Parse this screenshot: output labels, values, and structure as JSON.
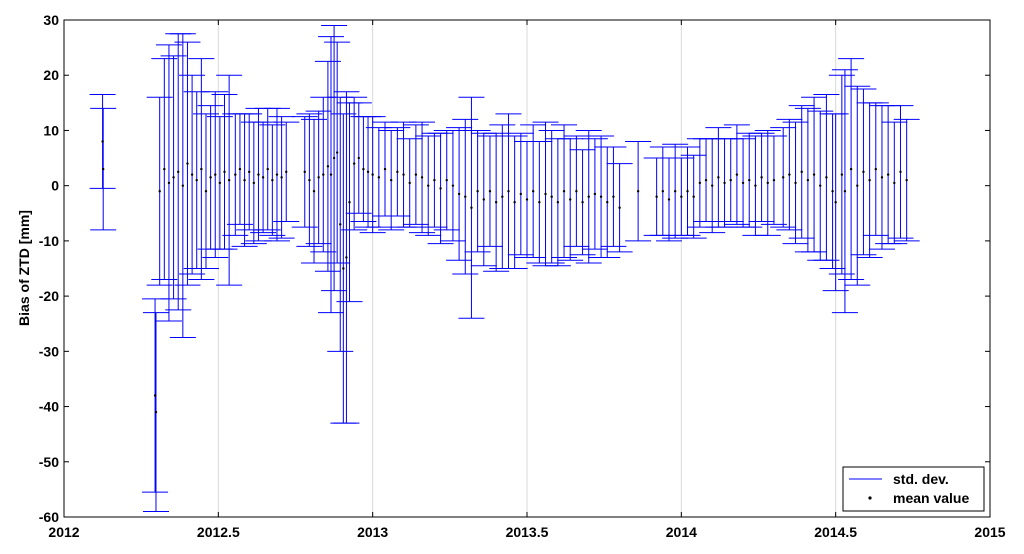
{
  "chart_data": {
    "type": "errorbar",
    "title": "",
    "xlabel": "",
    "ylabel": "Bias of ZTD [mm]",
    "xlim": [
      2012,
      2015
    ],
    "ylim": [
      -60,
      30
    ],
    "x_ticks": [
      2012,
      2012.5,
      2013,
      2013.5,
      2014,
      2014.5,
      2015
    ],
    "x_tick_labels": [
      "2012",
      "2012.5",
      "2013",
      "2013.5",
      "2014",
      "2014.5",
      "2015"
    ],
    "y_ticks": [
      -60,
      -50,
      -40,
      -30,
      -20,
      -10,
      0,
      10,
      20,
      30
    ],
    "y_tick_labels": [
      "-60",
      "-50",
      "-40",
      "-30",
      "-20",
      "-10",
      "0",
      "10",
      "20",
      "30"
    ],
    "grid": "x-only",
    "legend": {
      "position": "bottom-right",
      "entries": [
        {
          "name": "std. dev.",
          "marker": "line",
          "color": "#0000ff"
        },
        {
          "name": "mean value",
          "marker": "dot",
          "color": "#000000"
        }
      ]
    },
    "series": [
      {
        "name": "mean value",
        "error_name": "std. dev.",
        "points": [
          {
            "x": 2012.125,
            "y": 8.0,
            "err": 8.5
          },
          {
            "x": 2012.127,
            "y": 3.0,
            "err": 11.0
          },
          {
            "x": 2012.295,
            "y": -38.0,
            "err": 17.5
          },
          {
            "x": 2012.298,
            "y": -41.0,
            "err": 18.0
          },
          {
            "x": 2012.31,
            "y": -1.0,
            "err": 17.0
          },
          {
            "x": 2012.325,
            "y": 3.0,
            "err": 20.0
          },
          {
            "x": 2012.34,
            "y": 0.5,
            "err": 25.0
          },
          {
            "x": 2012.355,
            "y": 1.5,
            "err": 22.0
          },
          {
            "x": 2012.37,
            "y": 2.5,
            "err": 25.0
          },
          {
            "x": 2012.385,
            "y": 0.0,
            "err": 27.5
          },
          {
            "x": 2012.4,
            "y": 4.0,
            "err": 22.0
          },
          {
            "x": 2012.415,
            "y": 2.0,
            "err": 18.0
          },
          {
            "x": 2012.43,
            "y": 1.0,
            "err": 16.0
          },
          {
            "x": 2012.445,
            "y": 3.0,
            "err": 20.0
          },
          {
            "x": 2012.46,
            "y": -1.0,
            "err": 14.0
          },
          {
            "x": 2012.475,
            "y": 1.5,
            "err": 13.0
          },
          {
            "x": 2012.49,
            "y": 2.0,
            "err": 15.0
          },
          {
            "x": 2012.505,
            "y": 0.5,
            "err": 12.0
          },
          {
            "x": 2012.52,
            "y": 2.5,
            "err": 14.0
          },
          {
            "x": 2012.535,
            "y": 1.0,
            "err": 19.0
          },
          {
            "x": 2012.555,
            "y": 2.0,
            "err": 11.0
          },
          {
            "x": 2012.57,
            "y": 3.0,
            "err": 10.0
          },
          {
            "x": 2012.585,
            "y": 1.0,
            "err": 12.0
          },
          {
            "x": 2012.6,
            "y": 2.5,
            "err": 10.5
          },
          {
            "x": 2012.615,
            "y": 0.5,
            "err": 11.0
          },
          {
            "x": 2012.63,
            "y": 2.0,
            "err": 12.0
          },
          {
            "x": 2012.645,
            "y": 1.5,
            "err": 10.0
          },
          {
            "x": 2012.66,
            "y": 3.0,
            "err": 11.0
          },
          {
            "x": 2012.675,
            "y": 1.0,
            "err": 10.0
          },
          {
            "x": 2012.69,
            "y": 2.0,
            "err": 12.0
          },
          {
            "x": 2012.705,
            "y": 1.5,
            "err": 11.0
          },
          {
            "x": 2012.72,
            "y": 2.5,
            "err": 9.0
          },
          {
            "x": 2012.78,
            "y": 2.5,
            "err": 10.0
          },
          {
            "x": 2012.795,
            "y": 1.0,
            "err": 12.0
          },
          {
            "x": 2012.81,
            "y": -1.0,
            "err": 13.0
          },
          {
            "x": 2012.825,
            "y": 1.5,
            "err": 12.0
          },
          {
            "x": 2012.84,
            "y": 2.0,
            "err": 14.0
          },
          {
            "x": 2012.855,
            "y": 3.5,
            "err": 19.0
          },
          {
            "x": 2012.865,
            "y": 2.0,
            "err": 25.0
          },
          {
            "x": 2012.875,
            "y": 5.0,
            "err": 24.0
          },
          {
            "x": 2012.885,
            "y": 6.0,
            "err": 20.0
          },
          {
            "x": 2012.895,
            "y": -7.0,
            "err": 23.0
          },
          {
            "x": 2012.905,
            "y": -15.0,
            "err": 28.0
          },
          {
            "x": 2012.915,
            "y": -13.0,
            "err": 30.0
          },
          {
            "x": 2012.925,
            "y": -3.0,
            "err": 18.0
          },
          {
            "x": 2012.94,
            "y": 4.0,
            "err": 12.0
          },
          {
            "x": 2012.955,
            "y": 5.0,
            "err": 10.0
          },
          {
            "x": 2012.97,
            "y": 3.0,
            "err": 9.5
          },
          {
            "x": 2012.985,
            "y": 2.5,
            "err": 10.0
          },
          {
            "x": 2013.0,
            "y": 2.0,
            "err": 10.5
          },
          {
            "x": 2013.02,
            "y": 1.5,
            "err": 9.0
          },
          {
            "x": 2013.04,
            "y": 3.0,
            "err": 8.5
          },
          {
            "x": 2013.06,
            "y": 1.0,
            "err": 9.0
          },
          {
            "x": 2013.08,
            "y": 2.5,
            "err": 8.0
          },
          {
            "x": 2013.1,
            "y": 2.0,
            "err": 9.5
          },
          {
            "x": 2013.12,
            "y": 0.5,
            "err": 8.0
          },
          {
            "x": 2013.14,
            "y": 2.0,
            "err": 9.0
          },
          {
            "x": 2013.16,
            "y": 1.5,
            "err": 10.0
          },
          {
            "x": 2013.18,
            "y": 0.0,
            "err": 9.0
          },
          {
            "x": 2013.2,
            "y": 1.0,
            "err": 8.5
          },
          {
            "x": 2013.22,
            "y": -0.5,
            "err": 10.0
          },
          {
            "x": 2013.24,
            "y": 1.0,
            "err": 9.0
          },
          {
            "x": 2013.26,
            "y": 0.0,
            "err": 10.0
          },
          {
            "x": 2013.28,
            "y": -1.5,
            "err": 12.0
          },
          {
            "x": 2013.3,
            "y": -2.0,
            "err": 14.0
          },
          {
            "x": 2013.32,
            "y": -4.0,
            "err": 20.0
          },
          {
            "x": 2013.34,
            "y": -1.0,
            "err": 11.0
          },
          {
            "x": 2013.36,
            "y": -2.5,
            "err": 12.0
          },
          {
            "x": 2013.38,
            "y": -1.0,
            "err": 10.0
          },
          {
            "x": 2013.4,
            "y": -3.0,
            "err": 12.5
          },
          {
            "x": 2013.42,
            "y": -2.0,
            "err": 13.0
          },
          {
            "x": 2013.44,
            "y": -1.0,
            "err": 14.0
          },
          {
            "x": 2013.46,
            "y": -3.0,
            "err": 12.0
          },
          {
            "x": 2013.48,
            "y": -1.5,
            "err": 11.0
          },
          {
            "x": 2013.5,
            "y": -2.5,
            "err": 10.5
          },
          {
            "x": 2013.52,
            "y": -1.0,
            "err": 12.0
          },
          {
            "x": 2013.54,
            "y": -3.0,
            "err": 11.0
          },
          {
            "x": 2013.56,
            "y": -1.5,
            "err": 13.0
          },
          {
            "x": 2013.58,
            "y": -2.0,
            "err": 12.0
          },
          {
            "x": 2013.6,
            "y": -3.0,
            "err": 11.5
          },
          {
            "x": 2013.62,
            "y": -1.0,
            "err": 12.0
          },
          {
            "x": 2013.64,
            "y": -2.5,
            "err": 11.0
          },
          {
            "x": 2013.66,
            "y": -1.0,
            "err": 10.0
          },
          {
            "x": 2013.68,
            "y": -3.0,
            "err": 9.5
          },
          {
            "x": 2013.7,
            "y": -2.0,
            "err": 12.0
          },
          {
            "x": 2013.72,
            "y": -1.5,
            "err": 10.0
          },
          {
            "x": 2013.74,
            "y": -2.0,
            "err": 11.0
          },
          {
            "x": 2013.76,
            "y": -3.0,
            "err": 10.0
          },
          {
            "x": 2013.78,
            "y": -2.0,
            "err": 9.0
          },
          {
            "x": 2013.8,
            "y": -4.0,
            "err": 8.0
          },
          {
            "x": 2013.86,
            "y": -1.0,
            "err": 9.0
          },
          {
            "x": 2013.92,
            "y": -2.0,
            "err": 7.0
          },
          {
            "x": 2013.94,
            "y": -1.0,
            "err": 8.0
          },
          {
            "x": 2013.96,
            "y": -2.5,
            "err": 7.5
          },
          {
            "x": 2013.98,
            "y": -1.0,
            "err": 8.5
          },
          {
            "x": 2014.0,
            "y": -2.0,
            "err": 7.0
          },
          {
            "x": 2014.02,
            "y": -1.0,
            "err": 8.0
          },
          {
            "x": 2014.04,
            "y": -2.0,
            "err": 7.5
          },
          {
            "x": 2014.06,
            "y": 0.5,
            "err": 8.0
          },
          {
            "x": 2014.08,
            "y": 1.0,
            "err": 7.5
          },
          {
            "x": 2014.1,
            "y": 0.0,
            "err": 8.5
          },
          {
            "x": 2014.12,
            "y": 1.5,
            "err": 9.0
          },
          {
            "x": 2014.14,
            "y": 0.5,
            "err": 8.0
          },
          {
            "x": 2014.16,
            "y": 1.0,
            "err": 7.5
          },
          {
            "x": 2014.18,
            "y": 2.0,
            "err": 9.0
          },
          {
            "x": 2014.2,
            "y": 0.5,
            "err": 8.0
          },
          {
            "x": 2014.22,
            "y": 1.0,
            "err": 8.5
          },
          {
            "x": 2014.24,
            "y": 0.0,
            "err": 9.0
          },
          {
            "x": 2014.26,
            "y": 1.5,
            "err": 8.0
          },
          {
            "x": 2014.28,
            "y": 0.5,
            "err": 9.5
          },
          {
            "x": 2014.3,
            "y": 1.0,
            "err": 8.0
          },
          {
            "x": 2014.33,
            "y": 1.5,
            "err": 9.0
          },
          {
            "x": 2014.35,
            "y": 2.0,
            "err": 10.0
          },
          {
            "x": 2014.37,
            "y": 0.5,
            "err": 11.0
          },
          {
            "x": 2014.39,
            "y": 2.5,
            "err": 12.0
          },
          {
            "x": 2014.41,
            "y": 1.0,
            "err": 13.0
          },
          {
            "x": 2014.43,
            "y": 2.0,
            "err": 14.0
          },
          {
            "x": 2014.45,
            "y": 0.0,
            "err": 13.5
          },
          {
            "x": 2014.47,
            "y": 1.5,
            "err": 15.0
          },
          {
            "x": 2014.49,
            "y": -1.0,
            "err": 14.0
          },
          {
            "x": 2014.5,
            "y": -3.0,
            "err": 16.0
          },
          {
            "x": 2014.52,
            "y": 2.0,
            "err": 18.0
          },
          {
            "x": 2014.53,
            "y": -1.0,
            "err": 22.0
          },
          {
            "x": 2014.55,
            "y": 3.0,
            "err": 20.0
          },
          {
            "x": 2014.57,
            "y": 0.0,
            "err": 18.0
          },
          {
            "x": 2014.59,
            "y": 2.5,
            "err": 15.0
          },
          {
            "x": 2014.61,
            "y": 1.0,
            "err": 14.0
          },
          {
            "x": 2014.63,
            "y": 3.0,
            "err": 12.0
          },
          {
            "x": 2014.65,
            "y": 1.5,
            "err": 13.0
          },
          {
            "x": 2014.67,
            "y": 2.0,
            "err": 12.5
          },
          {
            "x": 2014.69,
            "y": 0.5,
            "err": 11.0
          },
          {
            "x": 2014.71,
            "y": 2.5,
            "err": 12.0
          },
          {
            "x": 2014.73,
            "y": 1.0,
            "err": 11.0
          }
        ]
      }
    ]
  }
}
